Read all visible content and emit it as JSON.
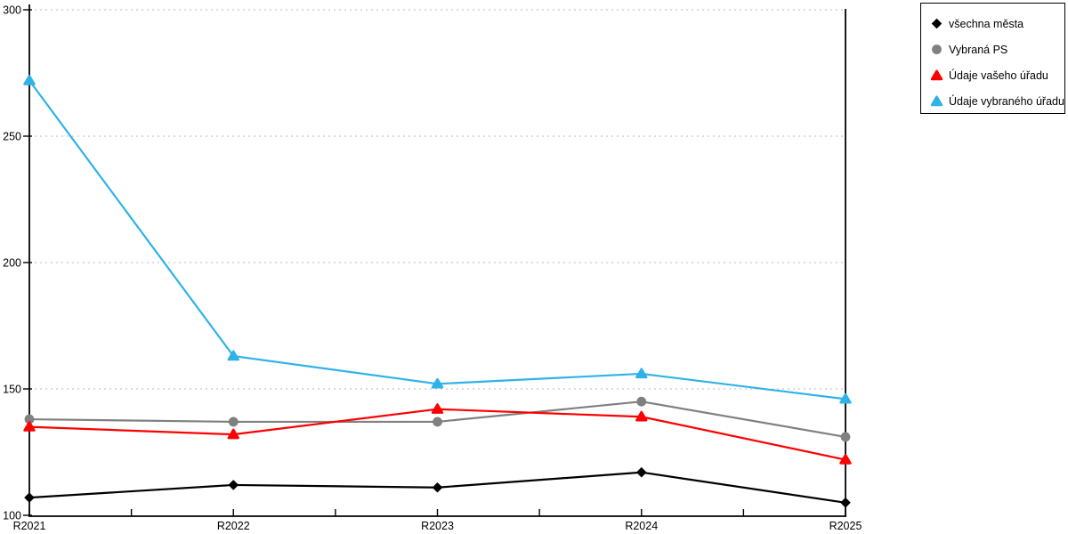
{
  "chart_data": {
    "type": "line",
    "title": "",
    "xlabel": "",
    "ylabel": "",
    "categories": [
      "R2021",
      "R2022",
      "R2023",
      "R2024",
      "R2025"
    ],
    "series": [
      {
        "name": "všechna města",
        "color": "#000000",
        "marker": "diamond",
        "values": [
          107,
          112,
          111,
          117,
          105
        ]
      },
      {
        "name": "Vybraná PS",
        "color": "#808080",
        "marker": "circle",
        "values": [
          138,
          137,
          137,
          145,
          131
        ]
      },
      {
        "name": "Údaje vašeho úřadu",
        "color": "#fe0000",
        "marker": "triangle",
        "values": [
          135,
          132,
          142,
          139,
          122
        ]
      },
      {
        "name": "Údaje vybraného úřadu",
        "color": "#2eb2e8",
        "marker": "triangle",
        "values": [
          272,
          163,
          152,
          156,
          146
        ]
      }
    ],
    "ylim": [
      100,
      300
    ],
    "yticks": [
      100,
      150,
      200,
      250,
      300
    ],
    "x_minor_ticks_between_categories": true,
    "grid": "horizontal-dotted",
    "gridline_color": "#c6c6c6",
    "axis_color": "#000000",
    "tick_label_color": "#000000",
    "legend_position": "top-right-outside-plot"
  }
}
